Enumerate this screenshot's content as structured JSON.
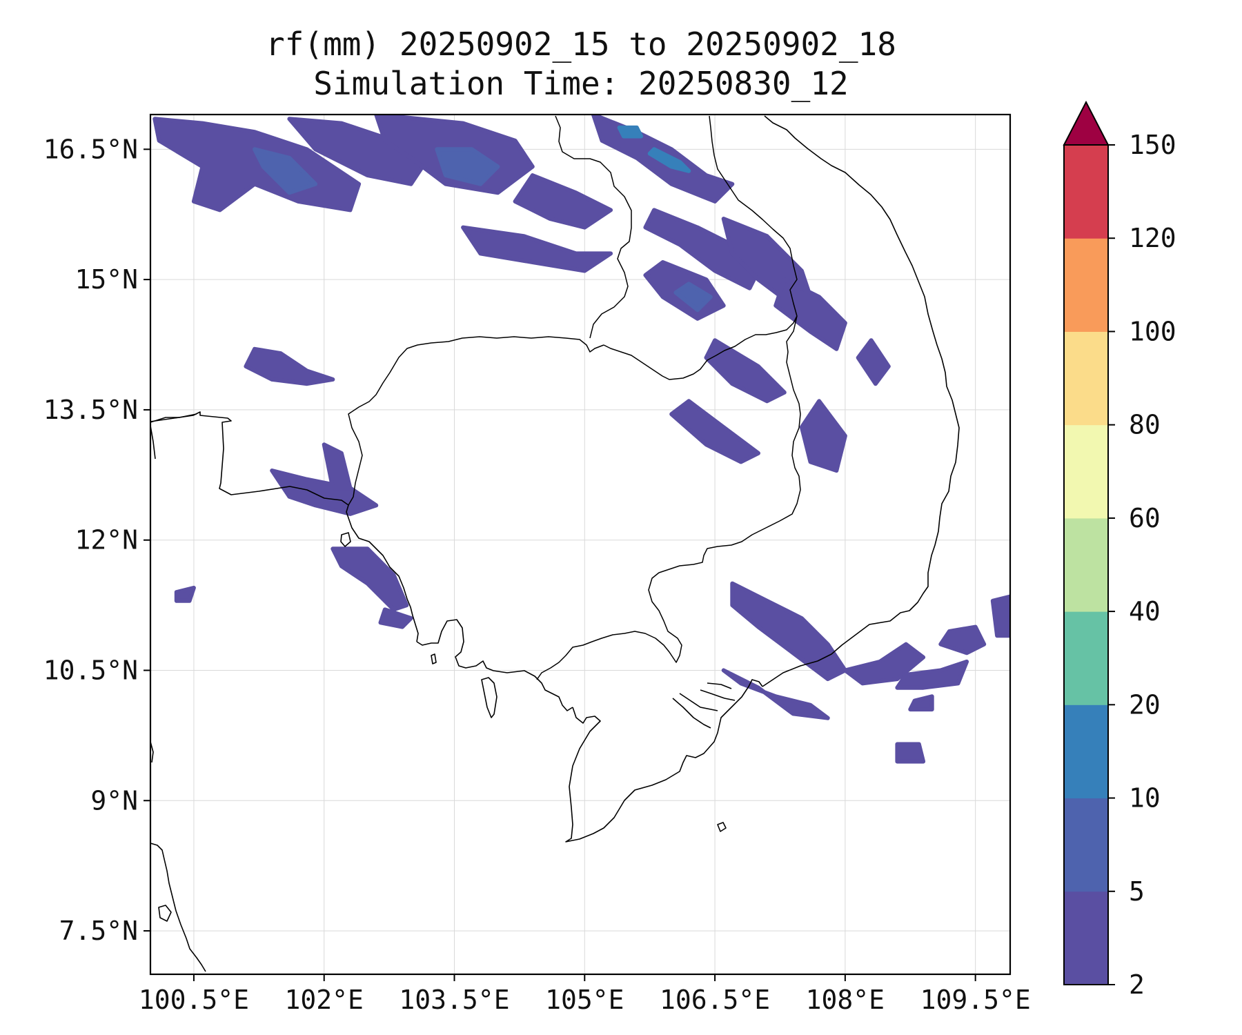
{
  "figure": {
    "title_line1": "rf(mm) 20250902_15 to 20250902_18",
    "title_line2": "Simulation Time: 20250830_12"
  },
  "map": {
    "lon_range": [
      100.0,
      109.9
    ],
    "lat_range": [
      7.0,
      16.9
    ],
    "lon_ticks": [
      100.5,
      102,
      103.5,
      105,
      106.5,
      108,
      109.5
    ],
    "lat_ticks": [
      7.5,
      9,
      10.5,
      12,
      13.5,
      15,
      16.5
    ],
    "lon_tick_labels": [
      "100.5°E",
      "102°E",
      "103.5°E",
      "105°E",
      "106.5°E",
      "108°E",
      "109.5°E"
    ],
    "lat_tick_labels": [
      "7.5°N",
      "9°N",
      "10.5°N",
      "12°N",
      "13.5°N",
      "15°N",
      "16.5°N"
    ],
    "gridlines": true,
    "rain_patches": [
      {
        "level": 1,
        "pts": [
          [
            100.05,
            16.85
          ],
          [
            100.6,
            16.8
          ],
          [
            101.2,
            16.7
          ],
          [
            101.8,
            16.5
          ],
          [
            102.4,
            16.1
          ],
          [
            102.3,
            15.8
          ],
          [
            101.7,
            15.9
          ],
          [
            101.2,
            16.1
          ],
          [
            100.8,
            15.8
          ],
          [
            100.5,
            15.9
          ],
          [
            100.6,
            16.3
          ],
          [
            100.1,
            16.6
          ]
        ]
      },
      {
        "level": 2,
        "pts": [
          [
            101.2,
            16.5
          ],
          [
            101.6,
            16.4
          ],
          [
            101.9,
            16.1
          ],
          [
            101.6,
            16.0
          ],
          [
            101.3,
            16.3
          ]
        ]
      },
      {
        "level": 1,
        "pts": [
          [
            101.6,
            16.85
          ],
          [
            102.2,
            16.8
          ],
          [
            102.8,
            16.6
          ],
          [
            103.2,
            16.4
          ],
          [
            103.0,
            16.1
          ],
          [
            102.5,
            16.2
          ],
          [
            101.9,
            16.5
          ]
        ]
      },
      {
        "level": 1,
        "pts": [
          [
            102.6,
            16.9
          ],
          [
            103.6,
            16.8
          ],
          [
            104.2,
            16.6
          ],
          [
            104.4,
            16.3
          ],
          [
            104.0,
            16.0
          ],
          [
            103.4,
            16.1
          ],
          [
            103.0,
            16.4
          ],
          [
            102.7,
            16.6
          ]
        ]
      },
      {
        "level": 2,
        "pts": [
          [
            103.3,
            16.5
          ],
          [
            103.7,
            16.5
          ],
          [
            104.0,
            16.3
          ],
          [
            103.8,
            16.1
          ],
          [
            103.4,
            16.2
          ]
        ]
      },
      {
        "level": 1,
        "pts": [
          [
            104.4,
            16.2
          ],
          [
            104.9,
            16.0
          ],
          [
            105.3,
            15.8
          ],
          [
            105.0,
            15.6
          ],
          [
            104.6,
            15.7
          ],
          [
            104.2,
            15.9
          ]
        ]
      },
      {
        "level": 1,
        "pts": [
          [
            103.6,
            15.6
          ],
          [
            104.3,
            15.5
          ],
          [
            104.9,
            15.3
          ],
          [
            105.3,
            15.3
          ],
          [
            105.0,
            15.1
          ],
          [
            104.4,
            15.2
          ],
          [
            103.8,
            15.3
          ]
        ]
      },
      {
        "level": 1,
        "pts": [
          [
            105.1,
            16.9
          ],
          [
            105.6,
            16.7
          ],
          [
            106.0,
            16.5
          ],
          [
            106.4,
            16.2
          ],
          [
            106.7,
            16.1
          ],
          [
            106.5,
            15.9
          ],
          [
            106.0,
            16.1
          ],
          [
            105.6,
            16.4
          ],
          [
            105.2,
            16.6
          ]
        ]
      },
      {
        "level": 3,
        "pts": [
          [
            105.4,
            16.75
          ],
          [
            105.6,
            16.75
          ],
          [
            105.65,
            16.65
          ],
          [
            105.45,
            16.65
          ]
        ]
      },
      {
        "level": 3,
        "pts": [
          [
            105.8,
            16.5
          ],
          [
            106.1,
            16.35
          ],
          [
            106.2,
            16.25
          ],
          [
            106.0,
            16.3
          ],
          [
            105.75,
            16.45
          ]
        ]
      },
      {
        "level": 1,
        "pts": [
          [
            105.8,
            15.8
          ],
          [
            106.3,
            15.6
          ],
          [
            106.7,
            15.4
          ],
          [
            107.0,
            15.1
          ],
          [
            106.9,
            14.9
          ],
          [
            106.5,
            15.1
          ],
          [
            106.1,
            15.4
          ],
          [
            105.7,
            15.6
          ]
        ]
      },
      {
        "level": 1,
        "pts": [
          [
            105.9,
            15.2
          ],
          [
            106.4,
            15.0
          ],
          [
            106.6,
            14.7
          ],
          [
            106.3,
            14.55
          ],
          [
            105.9,
            14.8
          ],
          [
            105.7,
            15.05
          ]
        ]
      },
      {
        "level": 2,
        "pts": [
          [
            106.2,
            14.95
          ],
          [
            106.45,
            14.8
          ],
          [
            106.3,
            14.65
          ],
          [
            106.05,
            14.85
          ]
        ]
      },
      {
        "level": 1,
        "pts": [
          [
            106.6,
            15.7
          ],
          [
            107.1,
            15.5
          ],
          [
            107.5,
            15.1
          ],
          [
            107.6,
            14.8
          ],
          [
            107.4,
            14.7
          ],
          [
            107.0,
            15.0
          ],
          [
            106.7,
            15.3
          ]
        ]
      },
      {
        "level": 1,
        "pts": [
          [
            107.3,
            15.0
          ],
          [
            107.7,
            14.8
          ],
          [
            108.0,
            14.5
          ],
          [
            107.9,
            14.2
          ],
          [
            107.6,
            14.4
          ],
          [
            107.2,
            14.7
          ]
        ]
      },
      {
        "level": 1,
        "pts": [
          [
            106.5,
            14.3
          ],
          [
            107.0,
            14.0
          ],
          [
            107.3,
            13.7
          ],
          [
            107.1,
            13.6
          ],
          [
            106.7,
            13.8
          ],
          [
            106.4,
            14.1
          ]
        ]
      },
      {
        "level": 1,
        "pts": [
          [
            106.2,
            13.6
          ],
          [
            106.6,
            13.3
          ],
          [
            107.0,
            13.0
          ],
          [
            106.8,
            12.9
          ],
          [
            106.4,
            13.1
          ],
          [
            106.0,
            13.45
          ]
        ]
      },
      {
        "level": 1,
        "pts": [
          [
            107.7,
            13.6
          ],
          [
            108.0,
            13.2
          ],
          [
            107.9,
            12.8
          ],
          [
            107.6,
            12.9
          ],
          [
            107.5,
            13.3
          ]
        ]
      },
      {
        "level": 1,
        "pts": [
          [
            108.3,
            14.3
          ],
          [
            108.5,
            14.0
          ],
          [
            108.35,
            13.8
          ],
          [
            108.15,
            14.1
          ]
        ]
      },
      {
        "level": 1,
        "pts": [
          [
            101.2,
            14.2
          ],
          [
            101.5,
            14.15
          ],
          [
            101.8,
            13.95
          ],
          [
            102.1,
            13.85
          ],
          [
            101.8,
            13.8
          ],
          [
            101.4,
            13.85
          ],
          [
            101.1,
            14.0
          ]
        ]
      },
      {
        "level": 1,
        "pts": [
          [
            101.4,
            12.8
          ],
          [
            101.8,
            12.7
          ],
          [
            102.3,
            12.6
          ],
          [
            102.6,
            12.4
          ],
          [
            102.3,
            12.3
          ],
          [
            101.9,
            12.4
          ],
          [
            101.6,
            12.5
          ]
        ]
      },
      {
        "level": 1,
        "pts": [
          [
            102.0,
            13.1
          ],
          [
            102.2,
            13.0
          ],
          [
            102.3,
            12.6
          ],
          [
            102.1,
            12.6
          ]
        ]
      },
      {
        "level": 1,
        "pts": [
          [
            102.1,
            11.9
          ],
          [
            102.5,
            11.9
          ],
          [
            102.8,
            11.6
          ],
          [
            102.95,
            11.25
          ],
          [
            102.8,
            11.2
          ],
          [
            102.5,
            11.5
          ],
          [
            102.2,
            11.7
          ]
        ]
      },
      {
        "level": 1,
        "pts": [
          [
            102.7,
            11.2
          ],
          [
            103.0,
            11.1
          ],
          [
            102.9,
            11.0
          ],
          [
            102.65,
            11.05
          ]
        ]
      },
      {
        "level": 1,
        "pts": [
          [
            100.3,
            11.4
          ],
          [
            100.5,
            11.45
          ],
          [
            100.45,
            11.3
          ],
          [
            100.3,
            11.3
          ]
        ]
      },
      {
        "level": 1,
        "pts": [
          [
            106.7,
            11.5
          ],
          [
            107.1,
            11.3
          ],
          [
            107.5,
            11.1
          ],
          [
            107.8,
            10.8
          ],
          [
            108.0,
            10.5
          ],
          [
            107.8,
            10.4
          ],
          [
            107.4,
            10.7
          ],
          [
            107.0,
            11.0
          ],
          [
            106.7,
            11.25
          ]
        ]
      },
      {
        "level": 1,
        "pts": [
          [
            106.6,
            10.5
          ],
          [
            107.0,
            10.3
          ],
          [
            107.4,
            10.0
          ],
          [
            107.8,
            9.95
          ],
          [
            107.6,
            10.1
          ],
          [
            107.2,
            10.2
          ],
          [
            106.8,
            10.35
          ]
        ]
      },
      {
        "level": 1,
        "pts": [
          [
            108.0,
            10.5
          ],
          [
            108.4,
            10.6
          ],
          [
            108.7,
            10.8
          ],
          [
            108.9,
            10.65
          ],
          [
            108.6,
            10.4
          ],
          [
            108.2,
            10.35
          ]
        ]
      },
      {
        "level": 1,
        "pts": [
          [
            108.7,
            10.45
          ],
          [
            109.1,
            10.5
          ],
          [
            109.4,
            10.6
          ],
          [
            109.3,
            10.35
          ],
          [
            108.9,
            10.3
          ],
          [
            108.6,
            10.3
          ]
        ]
      },
      {
        "level": 1,
        "pts": [
          [
            109.2,
            10.95
          ],
          [
            109.5,
            11.0
          ],
          [
            109.6,
            10.8
          ],
          [
            109.4,
            10.7
          ],
          [
            109.1,
            10.8
          ]
        ]
      },
      {
        "level": 1,
        "pts": [
          [
            109.7,
            11.3
          ],
          [
            109.9,
            11.35
          ],
          [
            109.9,
            10.9
          ],
          [
            109.75,
            10.9
          ]
        ]
      },
      {
        "level": 1,
        "pts": [
          [
            108.6,
            9.65
          ],
          [
            108.85,
            9.65
          ],
          [
            108.9,
            9.45
          ],
          [
            108.6,
            9.45
          ]
        ]
      },
      {
        "level": 1,
        "pts": [
          [
            108.8,
            10.15
          ],
          [
            109.0,
            10.2
          ],
          [
            109.0,
            10.05
          ],
          [
            108.75,
            10.05
          ]
        ]
      }
    ]
  },
  "colorbar": {
    "levels": [
      2,
      5,
      10,
      20,
      40,
      60,
      80,
      100,
      120,
      150
    ],
    "labels": [
      "2",
      "5",
      "10",
      "20",
      "40",
      "60",
      "80",
      "100",
      "120",
      "150"
    ],
    "colors": [
      "#5a4fa2",
      "#4e63ae",
      "#3680ba",
      "#66c2a5",
      "#bde2a1",
      "#f2f8b0",
      "#fbdc8a",
      "#f99b5a",
      "#d53e4f"
    ],
    "extend_color": "#9e0142"
  }
}
